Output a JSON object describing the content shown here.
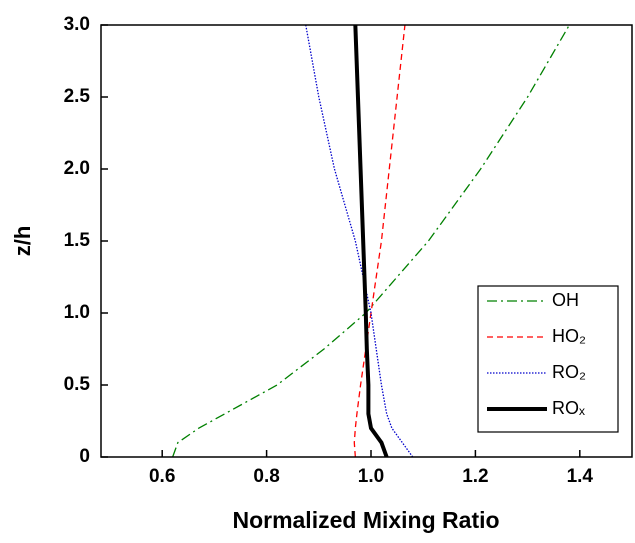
{
  "chart_data": {
    "type": "line",
    "x_label": "Normalized Mixing Ratio",
    "y_label": "z/h",
    "y": [
      0,
      0.1,
      0.2,
      0.3,
      0.5,
      0.75,
      1.0,
      1.5,
      2.0,
      2.5,
      3.0
    ],
    "series": [
      {
        "name": "OH",
        "color": "#008000",
        "dash": "10 4 2 4",
        "width": 1.3,
        "values": [
          0.62,
          0.63,
          0.67,
          0.72,
          0.82,
          0.91,
          0.99,
          1.11,
          1.21,
          1.3,
          1.38
        ]
      },
      {
        "name": "HO₂",
        "color": "#ff0000",
        "dash": "6 4",
        "width": 1.3,
        "values": [
          0.97,
          0.968,
          0.97,
          0.973,
          0.98,
          0.99,
          1.0,
          1.02,
          1.035,
          1.05,
          1.065
        ]
      },
      {
        "name": "RO₂",
        "color": "#0000cc",
        "dash": "1.5 1.5",
        "width": 1.3,
        "values": [
          1.08,
          1.06,
          1.04,
          1.03,
          1.02,
          1.01,
          1.0,
          0.97,
          0.93,
          0.9,
          0.875
        ]
      },
      {
        "name": "ROₓ",
        "color": "#000000",
        "dash": "",
        "width": 4,
        "values": [
          1.03,
          1.02,
          1.0,
          0.995,
          0.995,
          0.992,
          0.99,
          0.985,
          0.98,
          0.975,
          0.97
        ]
      }
    ],
    "xlim": [
      0.5,
      1.5
    ],
    "ylim": [
      0,
      3.0
    ],
    "xticks": [
      0.6,
      0.8,
      {
        "value": 1.0,
        "label": "1.0"
      },
      1.2,
      1.4
    ],
    "yticks": [
      0,
      0.5,
      {
        "value": 1.0,
        "label": "1.0"
      },
      1.5,
      {
        "value": 2.0,
        "label": "2.0"
      },
      2.5,
      {
        "value": 3.0,
        "label": "3.0"
      }
    ],
    "legend": "lower-right"
  }
}
